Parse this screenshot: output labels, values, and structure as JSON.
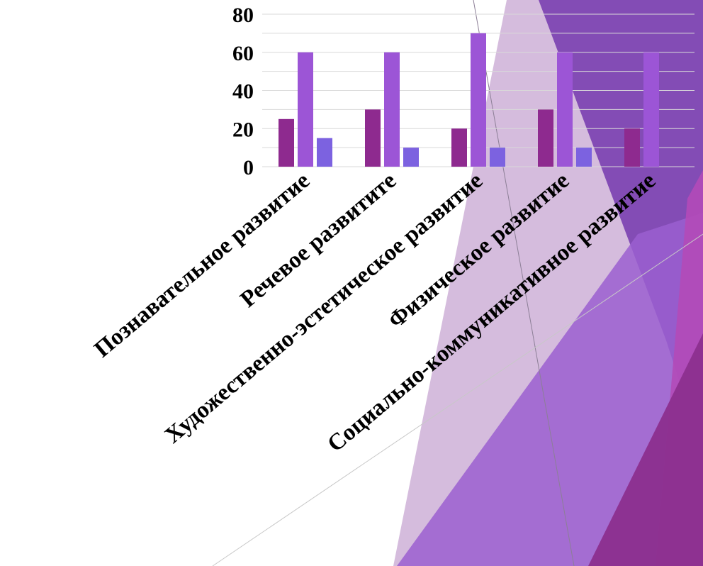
{
  "colors": {
    "series": [
      "#8e2a8f",
      "#9c55d6",
      "#7c62e0"
    ],
    "gridline": "#d9d9d9",
    "text": "#000000"
  },
  "chart_data": {
    "type": "bar",
    "categories": [
      "Познавательное развитие",
      "Речевое развитите",
      "Художественно-эстетическое развитие",
      "Физическое развитие",
      "Социально-коммуникативное развитие"
    ],
    "series": [
      {
        "values": [
          25,
          30,
          20,
          30,
          20
        ]
      },
      {
        "values": [
          60,
          60,
          70,
          60,
          60
        ]
      },
      {
        "values": [
          15,
          10,
          10,
          10,
          0
        ]
      }
    ],
    "y_ticks": [
      "0",
      "20",
      "40",
      "60",
      "80"
    ],
    "ylim": [
      0,
      80
    ],
    "grid": true,
    "legend": "none",
    "title": "",
    "xlabel": "",
    "ylabel": ""
  }
}
